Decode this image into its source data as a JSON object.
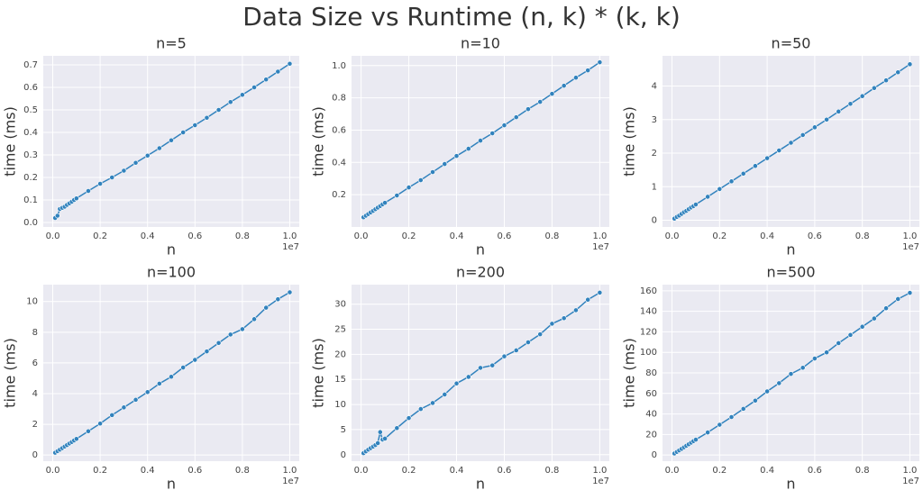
{
  "title": "Data Size vs Runtime (n, k) * (k, k)",
  "chart_data": [
    {
      "type": "line",
      "title": "n=5",
      "xlabel": "n",
      "ylabel": "time (ms)",
      "x_offset_label": "1e7",
      "color": "#3182bd",
      "grid": true,
      "x": [
        100000,
        200000,
        300000,
        400000,
        500000,
        600000,
        700000,
        800000,
        900000,
        1000000,
        1500000,
        2000000,
        2500000,
        3000000,
        3500000,
        4000000,
        4500000,
        5000000,
        5500000,
        6000000,
        6500000,
        7000000,
        7500000,
        8000000,
        8500000,
        9000000,
        9500000,
        10000000
      ],
      "values": [
        0.02,
        0.03,
        0.06,
        0.065,
        0.07,
        0.078,
        0.085,
        0.092,
        0.1,
        0.107,
        0.14,
        0.172,
        0.2,
        0.23,
        0.265,
        0.297,
        0.33,
        0.365,
        0.4,
        0.432,
        0.465,
        0.5,
        0.535,
        0.567,
        0.6,
        0.635,
        0.67,
        0.705
      ],
      "xlim": [
        -400000,
        10400000
      ],
      "xticks": [
        {
          "value": 0,
          "label": "0.0"
        },
        {
          "value": 2000000,
          "label": "0.2"
        },
        {
          "value": 4000000,
          "label": "0.4"
        },
        {
          "value": 6000000,
          "label": "0.6"
        },
        {
          "value": 8000000,
          "label": "0.8"
        },
        {
          "value": 10000000,
          "label": "1.0"
        }
      ],
      "ylim": [
        -0.02,
        0.74
      ],
      "yticks": [
        {
          "value": 0,
          "label": "0.0"
        },
        0.1,
        0.2,
        0.3,
        0.4,
        0.5,
        0.6,
        0.7
      ]
    },
    {
      "type": "line",
      "title": "n=10",
      "xlabel": "n",
      "ylabel": "time (ms)",
      "x_offset_label": "1e7",
      "color": "#3182bd",
      "grid": true,
      "x": [
        100000,
        200000,
        300000,
        400000,
        500000,
        600000,
        700000,
        800000,
        900000,
        1000000,
        1500000,
        2000000,
        2500000,
        3000000,
        3500000,
        4000000,
        4500000,
        5000000,
        5500000,
        6000000,
        6500000,
        7000000,
        7500000,
        8000000,
        8500000,
        9000000,
        9500000,
        10000000
      ],
      "values": [
        0.06,
        0.07,
        0.08,
        0.09,
        0.1,
        0.11,
        0.12,
        0.13,
        0.14,
        0.15,
        0.195,
        0.245,
        0.29,
        0.34,
        0.39,
        0.44,
        0.485,
        0.535,
        0.58,
        0.63,
        0.68,
        0.73,
        0.775,
        0.825,
        0.875,
        0.925,
        0.97,
        1.02
      ],
      "xlim": [
        -400000,
        10400000
      ],
      "xticks": [
        {
          "value": 0,
          "label": "0.0"
        },
        {
          "value": 2000000,
          "label": "0.2"
        },
        {
          "value": 4000000,
          "label": "0.4"
        },
        {
          "value": 6000000,
          "label": "0.6"
        },
        {
          "value": 8000000,
          "label": "0.8"
        },
        {
          "value": 10000000,
          "label": "1.0"
        }
      ],
      "ylim": [
        0.0,
        1.06
      ],
      "yticks": [
        0.2,
        0.4,
        0.6,
        0.8,
        {
          "value": 1,
          "label": "1.0"
        }
      ]
    },
    {
      "type": "line",
      "title": "n=50",
      "xlabel": "n",
      "ylabel": "time (ms)",
      "x_offset_label": "1e7",
      "color": "#3182bd",
      "grid": true,
      "x": [
        100000,
        200000,
        300000,
        400000,
        500000,
        600000,
        700000,
        800000,
        900000,
        1000000,
        1500000,
        2000000,
        2500000,
        3000000,
        3500000,
        4000000,
        4500000,
        5000000,
        5500000,
        6000000,
        6500000,
        7000000,
        7500000,
        8000000,
        8500000,
        9000000,
        9500000,
        10000000
      ],
      "values": [
        0.05,
        0.1,
        0.14,
        0.19,
        0.24,
        0.28,
        0.33,
        0.38,
        0.42,
        0.47,
        0.7,
        0.93,
        1.16,
        1.39,
        1.62,
        1.85,
        2.08,
        2.31,
        2.54,
        2.77,
        3.0,
        3.24,
        3.47,
        3.7,
        3.94,
        4.17,
        4.41,
        4.65
      ],
      "xlim": [
        -400000,
        10400000
      ],
      "xticks": [
        {
          "value": 0,
          "label": "0.0"
        },
        {
          "value": 2000000,
          "label": "0.2"
        },
        {
          "value": 4000000,
          "label": "0.4"
        },
        {
          "value": 6000000,
          "label": "0.6"
        },
        {
          "value": 8000000,
          "label": "0.8"
        },
        {
          "value": 10000000,
          "label": "1.0"
        }
      ],
      "ylim": [
        -0.2,
        4.9
      ],
      "yticks": [
        0,
        1,
        2,
        3,
        4
      ]
    },
    {
      "type": "line",
      "title": "n=100",
      "xlabel": "n",
      "ylabel": "time (ms)",
      "x_offset_label": "1e7",
      "color": "#3182bd",
      "grid": true,
      "x": [
        100000,
        200000,
        300000,
        400000,
        500000,
        600000,
        700000,
        800000,
        900000,
        1000000,
        1500000,
        2000000,
        2500000,
        3000000,
        3500000,
        4000000,
        4500000,
        5000000,
        5500000,
        6000000,
        6500000,
        7000000,
        7500000,
        8000000,
        8500000,
        9000000,
        9500000,
        10000000
      ],
      "values": [
        0.15,
        0.25,
        0.35,
        0.45,
        0.55,
        0.65,
        0.75,
        0.85,
        0.95,
        1.05,
        1.55,
        2.05,
        2.6,
        3.1,
        3.6,
        4.1,
        4.65,
        5.1,
        5.7,
        6.2,
        6.75,
        7.3,
        7.85,
        8.2,
        8.85,
        9.6,
        10.15,
        10.6
      ],
      "xlim": [
        -400000,
        10400000
      ],
      "xticks": [
        {
          "value": 0,
          "label": "0.0"
        },
        {
          "value": 2000000,
          "label": "0.2"
        },
        {
          "value": 4000000,
          "label": "0.4"
        },
        {
          "value": 6000000,
          "label": "0.6"
        },
        {
          "value": 8000000,
          "label": "0.8"
        },
        {
          "value": 10000000,
          "label": "1.0"
        }
      ],
      "ylim": [
        -0.4,
        11.1
      ],
      "yticks": [
        0,
        2,
        4,
        6,
        8,
        10
      ]
    },
    {
      "type": "line",
      "title": "n=200",
      "xlabel": "n",
      "ylabel": "time (ms)",
      "x_offset_label": "1e7",
      "color": "#3182bd",
      "grid": true,
      "x": [
        100000,
        200000,
        300000,
        400000,
        500000,
        600000,
        700000,
        800000,
        900000,
        1000000,
        1500000,
        2000000,
        2500000,
        3000000,
        3500000,
        4000000,
        4500000,
        5000000,
        5500000,
        6000000,
        6500000,
        7000000,
        7500000,
        8000000,
        8500000,
        9000000,
        9500000,
        10000000
      ],
      "values": [
        0.3,
        0.65,
        1.0,
        1.3,
        1.6,
        1.9,
        2.3,
        4.5,
        3.0,
        3.2,
        5.3,
        7.3,
        9.1,
        10.3,
        12.0,
        14.2,
        15.5,
        17.3,
        17.8,
        19.6,
        20.8,
        22.4,
        24.0,
        26.1,
        27.2,
        28.8,
        30.9,
        32.3
      ],
      "xlim": [
        -400000,
        10400000
      ],
      "xticks": [
        {
          "value": 0,
          "label": "0.0"
        },
        {
          "value": 2000000,
          "label": "0.2"
        },
        {
          "value": 4000000,
          "label": "0.4"
        },
        {
          "value": 6000000,
          "label": "0.6"
        },
        {
          "value": 8000000,
          "label": "0.8"
        },
        {
          "value": 10000000,
          "label": "1.0"
        }
      ],
      "ylim": [
        -1.3,
        33.9
      ],
      "yticks": [
        0,
        5,
        10,
        15,
        20,
        25,
        30
      ]
    },
    {
      "type": "line",
      "title": "n=500",
      "xlabel": "n",
      "ylabel": "time (ms)",
      "x_offset_label": "1e7",
      "color": "#3182bd",
      "grid": true,
      "x": [
        100000,
        200000,
        300000,
        400000,
        500000,
        600000,
        700000,
        800000,
        900000,
        1000000,
        1500000,
        2000000,
        2500000,
        3000000,
        3500000,
        4000000,
        4500000,
        5000000,
        5500000,
        6000000,
        6500000,
        7000000,
        7500000,
        8000000,
        8500000,
        9000000,
        9500000,
        10000000
      ],
      "values": [
        1.5,
        3,
        4.5,
        6,
        7.5,
        9,
        10.5,
        12,
        13.5,
        15,
        22,
        29.5,
        37,
        45,
        53,
        62,
        70,
        79,
        85,
        94,
        100,
        109,
        117,
        125,
        133,
        143,
        152,
        158
      ],
      "xlim": [
        -400000,
        10400000
      ],
      "xticks": [
        {
          "value": 0,
          "label": "0.0"
        },
        {
          "value": 2000000,
          "label": "0.2"
        },
        {
          "value": 4000000,
          "label": "0.4"
        },
        {
          "value": 6000000,
          "label": "0.6"
        },
        {
          "value": 8000000,
          "label": "0.8"
        },
        {
          "value": 10000000,
          "label": "1.0"
        }
      ],
      "ylim": [
        -6,
        166
      ],
      "yticks": [
        0,
        20,
        40,
        60,
        80,
        100,
        120,
        140,
        160
      ]
    }
  ]
}
